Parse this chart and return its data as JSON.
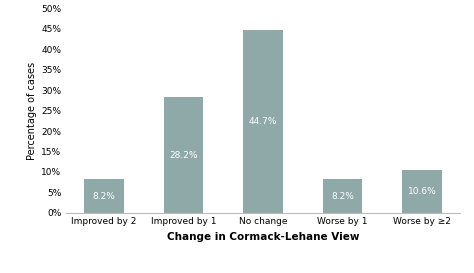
{
  "categories": [
    "Improved by 2",
    "Improved by 1",
    "No change",
    "Worse by 1",
    "Worse by ≥2"
  ],
  "values": [
    8.2,
    28.2,
    44.7,
    8.2,
    10.6
  ],
  "bar_color": "#8fa8a8",
  "bar_labels": [
    "8.2%",
    "28.2%",
    "44.7%",
    "8.2%",
    "10.6%"
  ],
  "xlabel": "Change in Cormack-Lehane View",
  "ylabel": "Percentage of cases",
  "ylim": [
    0,
    50
  ],
  "yticks": [
    0,
    5,
    10,
    15,
    20,
    25,
    30,
    35,
    40,
    45,
    50
  ],
  "background_color": "#ffffff",
  "label_color": "#ffffff",
  "label_fontsize": 6.5,
  "xlabel_fontsize": 7.5,
  "ylabel_fontsize": 7.0,
  "tick_fontsize": 6.5,
  "xlabel_fontweight": "bold",
  "bar_width": 0.5
}
